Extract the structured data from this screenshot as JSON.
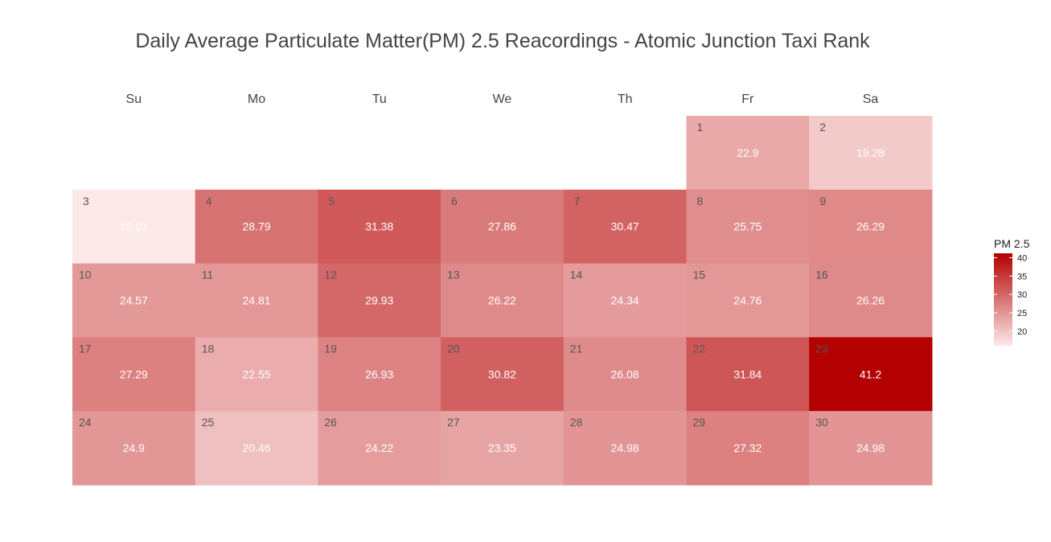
{
  "chart_data": {
    "type": "heatmap",
    "title": "Daily Average Particulate Matter(PM) 2.5 Reacordings - Atomic Junction Taxi Rank",
    "weekdays": [
      "Su",
      "Mo",
      "Tu",
      "We",
      "Th",
      "Fr",
      "Sa"
    ],
    "first_weekday_index": 5,
    "days": [
      {
        "day": 1,
        "value": 22.9
      },
      {
        "day": 2,
        "value": 19.28
      },
      {
        "day": 3,
        "value": 16.01
      },
      {
        "day": 4,
        "value": 28.79
      },
      {
        "day": 5,
        "value": 31.38
      },
      {
        "day": 6,
        "value": 27.86
      },
      {
        "day": 7,
        "value": 30.47
      },
      {
        "day": 8,
        "value": 25.75
      },
      {
        "day": 9,
        "value": 26.29
      },
      {
        "day": 10,
        "value": 24.57
      },
      {
        "day": 11,
        "value": 24.81
      },
      {
        "day": 12,
        "value": 29.93
      },
      {
        "day": 13,
        "value": 26.22
      },
      {
        "day": 14,
        "value": 24.34
      },
      {
        "day": 15,
        "value": 24.76
      },
      {
        "day": 16,
        "value": 26.26
      },
      {
        "day": 17,
        "value": 27.29
      },
      {
        "day": 18,
        "value": 22.55
      },
      {
        "day": 19,
        "value": 26.93
      },
      {
        "day": 20,
        "value": 30.82
      },
      {
        "day": 21,
        "value": 26.08
      },
      {
        "day": 22,
        "value": 31.84
      },
      {
        "day": 23,
        "value": 41.2
      },
      {
        "day": 24,
        "value": 24.9
      },
      {
        "day": 25,
        "value": 20.46
      },
      {
        "day": 26,
        "value": 24.22
      },
      {
        "day": 27,
        "value": 23.35
      },
      {
        "day": 28,
        "value": 24.98
      },
      {
        "day": 29,
        "value": 27.32
      },
      {
        "day": 30,
        "value": 24.98
      }
    ],
    "legend": {
      "title": "PM 2.5",
      "ticks": [
        20,
        25,
        30,
        35,
        40
      ],
      "range": [
        16.01,
        41.2
      ],
      "position": "right"
    },
    "colors": {
      "low": "#fde8e8",
      "high": "#b30000"
    }
  }
}
